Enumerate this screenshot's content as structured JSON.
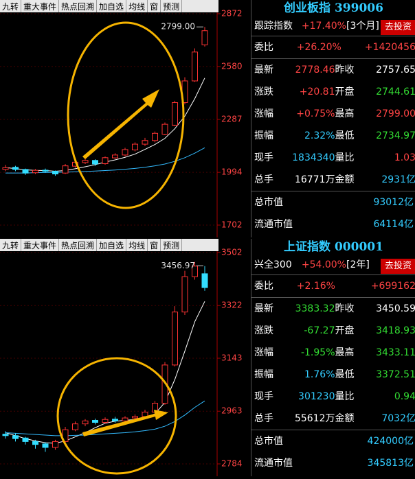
{
  "panels": [
    {
      "toolbar": [
        "九转",
        "重大事件",
        "热点回溯",
        "加自选",
        "均线",
        "窗",
        "预测"
      ],
      "chart": {
        "type": "candlestick",
        "ylim": [
          1702,
          2872
        ],
        "yticks": [
          1702,
          1994,
          2287,
          2580,
          2872
        ],
        "peak": {
          "value": 2799,
          "label": "2799.00"
        },
        "candles": [
          [
            2010,
            2020,
            2035,
            2000
          ],
          [
            2022,
            2010,
            2030,
            2000
          ],
          [
            2010,
            1990,
            2015,
            1980
          ],
          [
            1992,
            2005,
            2012,
            1985
          ],
          [
            2006,
            2000,
            2015,
            1992
          ],
          [
            2000,
            1985,
            2004,
            1975
          ],
          [
            1990,
            2030,
            2040,
            1985
          ],
          [
            2028,
            2050,
            2060,
            2020
          ],
          [
            2048,
            2060,
            2070,
            2040
          ],
          [
            2060,
            2040,
            2066,
            2030
          ],
          [
            2042,
            2075,
            2082,
            2036
          ],
          [
            2074,
            2090,
            2100,
            2068
          ],
          [
            2090,
            2120,
            2130,
            2082
          ],
          [
            2118,
            2150,
            2160,
            2110
          ],
          [
            2150,
            2170,
            2185,
            2140
          ],
          [
            2170,
            2210,
            2220,
            2160
          ],
          [
            2205,
            2260,
            2270,
            2200
          ],
          [
            2255,
            2380,
            2390,
            2250
          ],
          [
            2380,
            2500,
            2520,
            2370
          ],
          [
            2500,
            2660,
            2680,
            2495
          ],
          [
            2700,
            2778,
            2799,
            2690
          ]
        ],
        "ma": [
          {
            "color": "#ffffff",
            "values": [
              2020,
              2015,
              2008,
              2005,
              2004,
              2000,
              2004,
              2014,
              2025,
              2036,
              2051,
              2063,
              2077,
              2095,
              2121,
              2148,
              2182,
              2236,
              2305,
              2402,
              2516
            ]
          },
          {
            "color": "#33bbff",
            "values": [
              1990,
              1990,
              1990,
              1992,
              1993,
              1994,
              1995,
              1997,
              1999,
              2001,
              2004,
              2007,
              2011,
              2016,
              2022,
              2030,
              2040,
              2055,
              2075,
              2100,
              2130
            ]
          }
        ]
      },
      "info": {
        "title": "创业板指 399006",
        "track": [
          "跟踪指数",
          "+17.40%",
          "[3个月]",
          "去投资"
        ],
        "bid": [
          "委比",
          "+26.20%",
          "+1420456"
        ],
        "rows": [
          [
            "最新",
            "2778.46",
            "昨收",
            "2757.65"
          ],
          [
            "涨跌",
            "+20.81",
            "开盘",
            "2744.61"
          ],
          [
            "涨幅",
            "+0.75%",
            "最高",
            "2799.00"
          ],
          [
            "振幅",
            "2.32%",
            "最低",
            "2734.97"
          ],
          [
            "现手",
            "1834340",
            "量比",
            "1.03"
          ],
          [
            "总手",
            "16771万",
            "金额",
            "2931亿"
          ]
        ],
        "caps": [
          [
            "总市值",
            "93012亿"
          ],
          [
            "流通市值",
            "64114亿"
          ]
        ]
      }
    },
    {
      "toolbar": [
        "九转",
        "重大事件",
        "热点回溯",
        "加自选",
        "均线",
        "窗",
        "预测"
      ],
      "chart": {
        "type": "candlestick",
        "ylim": [
          2784,
          3502
        ],
        "yticks": [
          2784,
          2963,
          3143,
          3322,
          3502
        ],
        "peak": {
          "value": 3456.97,
          "label": "3456.97"
        },
        "candles": [
          [
            2885,
            2880,
            2895,
            2870
          ],
          [
            2880,
            2870,
            2888,
            2860
          ],
          [
            2872,
            2860,
            2876,
            2850
          ],
          [
            2860,
            2850,
            2866,
            2836
          ],
          [
            2852,
            2840,
            2858,
            2825
          ],
          [
            2840,
            2860,
            2866,
            2832
          ],
          [
            2860,
            2900,
            2910,
            2855
          ],
          [
            2900,
            2920,
            2928,
            2895
          ],
          [
            2920,
            2930,
            2936,
            2912
          ],
          [
            2932,
            2925,
            2938,
            2918
          ],
          [
            2925,
            2935,
            2942,
            2920
          ],
          [
            2936,
            2930,
            2944,
            2924
          ],
          [
            2930,
            2940,
            2946,
            2925
          ],
          [
            2940,
            2945,
            2952,
            2934
          ],
          [
            2945,
            2960,
            2968,
            2940
          ],
          [
            2960,
            2990,
            2998,
            2955
          ],
          [
            2990,
            3120,
            3130,
            2985
          ],
          [
            3120,
            3300,
            3320,
            3115
          ],
          [
            3300,
            3420,
            3440,
            3290
          ],
          [
            3420,
            3456,
            3470,
            3410
          ],
          [
            3430,
            3383,
            3456,
            3372
          ]
        ],
        "ma": [
          {
            "color": "#ffffff",
            "values": [
              2890,
              2880,
              2870,
              2862,
              2856,
              2854,
              2862,
              2876,
              2890,
              2907,
              2922,
              2929,
              2932,
              2935,
              2942,
              2954,
              2993,
              3071,
              3167,
              3267,
              3336
            ]
          },
          {
            "color": "#33bbff",
            "values": [
              2890,
              2888,
              2886,
              2884,
              2882,
              2880,
              2880,
              2881,
              2882,
              2884,
              2886,
              2888,
              2890,
              2893,
              2897,
              2902,
              2912,
              2928,
              2950,
              2976,
              2998
            ]
          }
        ]
      },
      "info": {
        "title": "上证指数 000001",
        "track": [
          "兴全300",
          "+54.00%",
          "[2年]",
          "去投资"
        ],
        "bid": [
          "委比",
          "+2.16%",
          "+699162"
        ],
        "rows": [
          [
            "最新",
            "3383.32",
            "昨收",
            "3450.59"
          ],
          [
            "涨跌",
            "-67.27",
            "开盘",
            "3418.93"
          ],
          [
            "涨幅",
            "-1.95%",
            "最高",
            "3433.11"
          ],
          [
            "振幅",
            "1.76%",
            "最低",
            "3372.51"
          ],
          [
            "现手",
            "301230",
            "量比",
            "0.94"
          ],
          [
            "总手",
            "55612万",
            "金额",
            "7032亿"
          ]
        ],
        "caps": [
          [
            "总市值",
            "424000亿"
          ],
          [
            "流通市值",
            "345813亿"
          ]
        ]
      }
    }
  ]
}
